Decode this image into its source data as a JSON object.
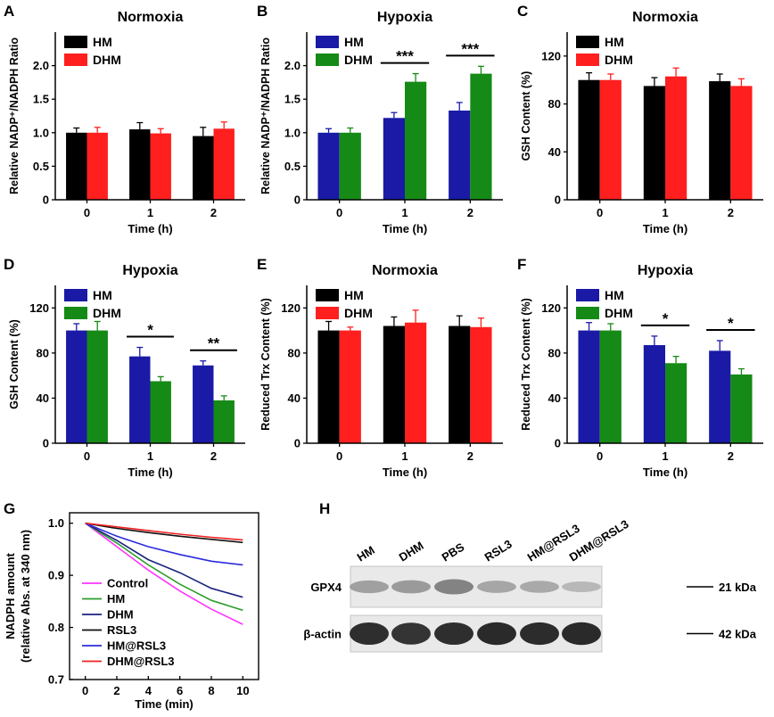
{
  "colors": {
    "black": "#000000",
    "red": "#ff1f1f",
    "blue": "#1a1aa6",
    "green": "#168a16"
  },
  "chart_data": [
    {
      "id": "A",
      "type": "bar",
      "title": "Normoxia",
      "xlabel": "Time (h)",
      "ylabel": "Relative NADP⁺/NADPH Ratio",
      "categories": [
        "0",
        "1",
        "2"
      ],
      "ylim": [
        0,
        2.5
      ],
      "yticks": [
        0,
        0.5,
        1.0,
        1.5,
        2.0
      ],
      "ytick_labels": [
        "0",
        "0.5",
        "1.0",
        "1.5",
        "2.0"
      ],
      "series": [
        {
          "name": "HM",
          "color": "#000000",
          "values": [
            1.0,
            1.05,
            0.95
          ],
          "errors": [
            0.07,
            0.1,
            0.13
          ]
        },
        {
          "name": "DHM",
          "color": "#ff1f1f",
          "values": [
            1.0,
            0.99,
            1.06
          ],
          "errors": [
            0.08,
            0.07,
            0.1
          ]
        }
      ],
      "significance": []
    },
    {
      "id": "B",
      "type": "bar",
      "title": "Hypoxia",
      "xlabel": "Time (h)",
      "ylabel": "Relative NADP⁺/NADPH Ratio",
      "categories": [
        "0",
        "1",
        "2"
      ],
      "ylim": [
        0,
        2.5
      ],
      "yticks": [
        0,
        0.5,
        1.0,
        1.5,
        2.0
      ],
      "ytick_labels": [
        "0",
        "0.5",
        "1.0",
        "1.5",
        "2.0"
      ],
      "series": [
        {
          "name": "HM",
          "color": "#1a1aa6",
          "values": [
            1.0,
            1.22,
            1.33
          ],
          "errors": [
            0.06,
            0.08,
            0.12
          ]
        },
        {
          "name": "DHM",
          "color": "#168a16",
          "values": [
            1.0,
            1.76,
            1.88
          ],
          "errors": [
            0.07,
            0.12,
            0.11
          ]
        }
      ],
      "significance": [
        {
          "cat": 1,
          "label": "***"
        },
        {
          "cat": 2,
          "label": "***"
        }
      ]
    },
    {
      "id": "C",
      "type": "bar",
      "title": "Normoxia",
      "xlabel": "Time (h)",
      "ylabel": "GSH Content (%)",
      "categories": [
        "0",
        "1",
        "2"
      ],
      "ylim": [
        0,
        140
      ],
      "yticks": [
        0,
        40,
        80,
        120
      ],
      "ytick_labels": [
        "0",
        "40",
        "80",
        "120"
      ],
      "series": [
        {
          "name": "HM",
          "color": "#000000",
          "values": [
            100,
            95,
            99
          ],
          "errors": [
            6,
            7,
            6
          ]
        },
        {
          "name": "DHM",
          "color": "#ff1f1f",
          "values": [
            100,
            103,
            95
          ],
          "errors": [
            5,
            7,
            6
          ]
        }
      ],
      "significance": []
    },
    {
      "id": "D",
      "type": "bar",
      "title": "Hypoxia",
      "xlabel": "Time (h)",
      "ylabel": "GSH Content (%)",
      "categories": [
        "0",
        "1",
        "2"
      ],
      "ylim": [
        0,
        140
      ],
      "yticks": [
        0,
        40,
        80,
        120
      ],
      "ytick_labels": [
        "0",
        "40",
        "80",
        "120"
      ],
      "series": [
        {
          "name": "HM",
          "color": "#1a1aa6",
          "values": [
            100,
            77,
            69
          ],
          "errors": [
            6,
            8,
            4
          ]
        },
        {
          "name": "DHM",
          "color": "#168a16",
          "values": [
            100,
            55,
            38
          ],
          "errors": [
            8,
            4,
            4
          ]
        }
      ],
      "significance": [
        {
          "cat": 1,
          "label": "*"
        },
        {
          "cat": 2,
          "label": "**"
        }
      ]
    },
    {
      "id": "E",
      "type": "bar",
      "title": "Normoxia",
      "xlabel": "Time (h)",
      "ylabel": "Reduced Trx Content (%)",
      "categories": [
        "0",
        "1",
        "2"
      ],
      "ylim": [
        0,
        140
      ],
      "yticks": [
        0,
        40,
        80,
        120
      ],
      "ytick_labels": [
        "0",
        "40",
        "80",
        "120"
      ],
      "series": [
        {
          "name": "HM",
          "color": "#000000",
          "values": [
            100,
            104,
            104
          ],
          "errors": [
            8,
            8,
            9
          ]
        },
        {
          "name": "DHM",
          "color": "#ff1f1f",
          "values": [
            100,
            107,
            103
          ],
          "errors": [
            3,
            11,
            8
          ]
        }
      ],
      "significance": []
    },
    {
      "id": "F",
      "type": "bar",
      "title": "Hypoxia",
      "xlabel": "Time (h)",
      "ylabel": "Reduced Trx Content (%)",
      "categories": [
        "0",
        "1",
        "2"
      ],
      "ylim": [
        0,
        140
      ],
      "yticks": [
        0,
        40,
        80,
        120
      ],
      "ytick_labels": [
        "0",
        "40",
        "80",
        "120"
      ],
      "series": [
        {
          "name": "HM",
          "color": "#1a1aa6",
          "values": [
            100,
            87,
            82
          ],
          "errors": [
            7,
            8,
            9
          ]
        },
        {
          "name": "DHM",
          "color": "#168a16",
          "values": [
            100,
            71,
            61
          ],
          "errors": [
            6,
            6,
            5
          ]
        }
      ],
      "significance": [
        {
          "cat": 1,
          "label": "*"
        },
        {
          "cat": 2,
          "label": "*"
        }
      ]
    },
    {
      "id": "G",
      "type": "line",
      "title": "",
      "xlabel": "Time (min)",
      "ylabel": "NADPH amount",
      "ylabel2": "(relative Abs. at 340 nm)",
      "x": [
        0,
        2,
        4,
        6,
        8,
        10
      ],
      "xlim": [
        -1,
        11
      ],
      "ylim": [
        0.7,
        1.02
      ],
      "xticks": [
        0,
        2,
        4,
        6,
        8,
        10
      ],
      "yticks": [
        0.7,
        0.8,
        0.9,
        1.0
      ],
      "ytick_labels": [
        "0.7",
        "0.8",
        "0.9",
        "1.0"
      ],
      "series": [
        {
          "name": "Control",
          "color": "#ff33ff",
          "values": [
            1.0,
            0.955,
            0.91,
            0.87,
            0.835,
            0.806
          ]
        },
        {
          "name": "HM",
          "color": "#2e9e2e",
          "values": [
            1.0,
            0.962,
            0.92,
            0.883,
            0.852,
            0.833
          ]
        },
        {
          "name": "DHM",
          "color": "#1a237e",
          "values": [
            1.0,
            0.967,
            0.93,
            0.905,
            0.875,
            0.858
          ]
        },
        {
          "name": "RSL3",
          "color": "#111111",
          "values": [
            1.0,
            0.99,
            0.982,
            0.975,
            0.969,
            0.963
          ]
        },
        {
          "name": "HM@RSL3",
          "color": "#2b2bdd",
          "values": [
            1.0,
            0.975,
            0.955,
            0.94,
            0.927,
            0.92
          ]
        },
        {
          "name": "DHM@RSL3",
          "color": "#ee2222",
          "values": [
            1.0,
            0.993,
            0.986,
            0.979,
            0.973,
            0.968
          ]
        }
      ]
    }
  ],
  "panels": {
    "A": "A",
    "B": "B",
    "C": "C",
    "D": "D",
    "E": "E",
    "F": "F",
    "G": "G",
    "H": "H"
  },
  "blot": {
    "lanes": [
      "HM",
      "DHM",
      "PBS",
      "RSL3",
      "HM@RSL3",
      "DHM@RSL3"
    ],
    "rows": [
      {
        "label": "GPX4",
        "marker": "21 kDa",
        "intensity": [
          0.35,
          0.38,
          0.5,
          0.32,
          0.3,
          0.22
        ]
      },
      {
        "label": "β-actin",
        "marker": "42 kDa",
        "intensity": [
          0.95,
          0.92,
          0.95,
          0.97,
          0.96,
          0.97
        ]
      }
    ]
  }
}
